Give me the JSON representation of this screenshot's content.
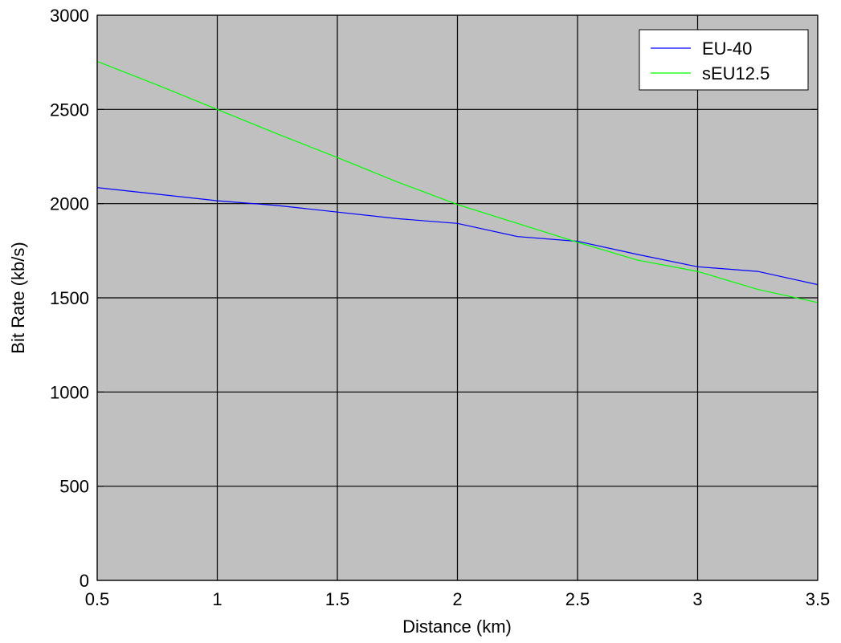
{
  "chart_data": {
    "type": "line",
    "title": "",
    "xlabel": "Distance (km)",
    "ylabel": "Bit Rate (kb/s)",
    "xlim": [
      0.5,
      3.5
    ],
    "ylim": [
      0,
      3000
    ],
    "x_ticks": [
      "0.5",
      "1",
      "1.5",
      "2",
      "2.5",
      "3",
      "3.5"
    ],
    "y_ticks": [
      "0",
      "500",
      "1000",
      "1500",
      "2000",
      "2500",
      "3000"
    ],
    "grid": true,
    "background": "#c0c0c0",
    "legend_position": "top-right",
    "series": [
      {
        "name": "EU-40",
        "color": "#0000ff",
        "x": [
          0.5,
          0.75,
          1.0,
          1.25,
          1.5,
          1.75,
          2.0,
          2.25,
          2.5,
          2.75,
          3.0,
          3.25,
          3.5
        ],
        "values": [
          2085,
          2050,
          2015,
          1990,
          1955,
          1920,
          1895,
          1825,
          1800,
          1730,
          1665,
          1640,
          1570
        ]
      },
      {
        "name": "sEU12.5",
        "color": "#00ff00",
        "x": [
          0.5,
          0.75,
          1.0,
          1.25,
          1.5,
          1.75,
          2.0,
          2.25,
          2.5,
          2.75,
          3.0,
          3.25,
          3.5
        ],
        "values": [
          2755,
          2630,
          2500,
          2370,
          2245,
          2115,
          1995,
          1895,
          1795,
          1700,
          1640,
          1545,
          1475
        ]
      }
    ]
  }
}
